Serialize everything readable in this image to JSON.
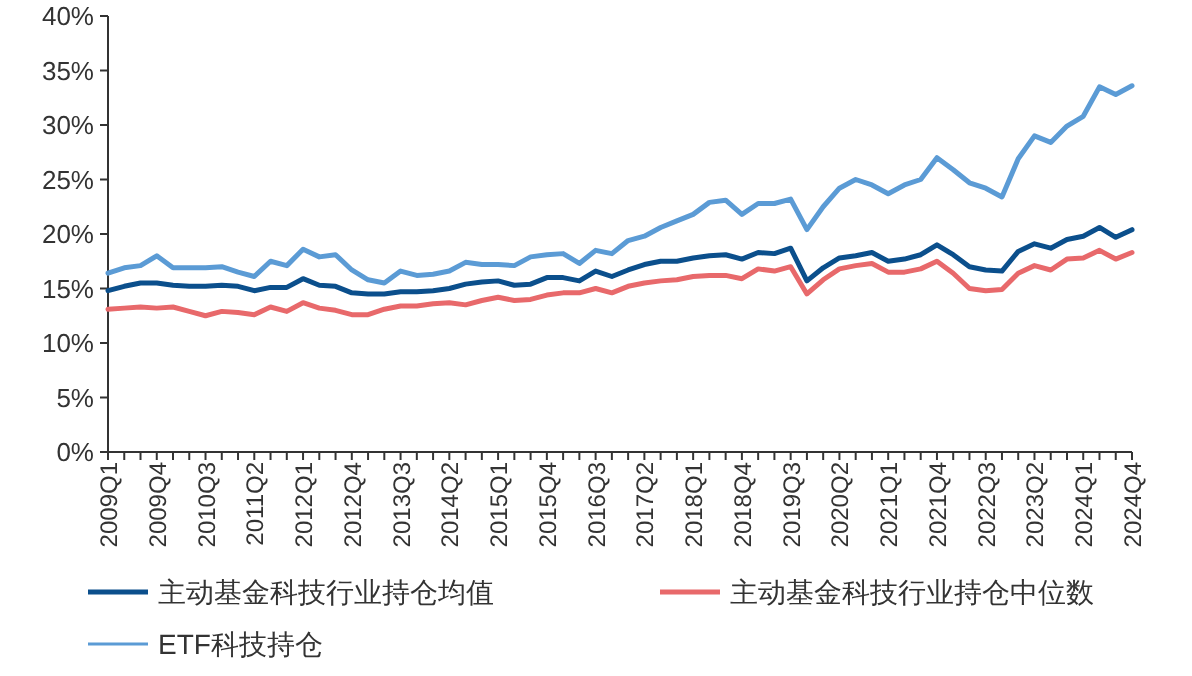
{
  "chart_data": {
    "type": "line",
    "categories": [
      "2009Q1",
      null,
      null,
      "2009Q4",
      null,
      null,
      "2010Q3",
      null,
      null,
      "2011Q2",
      null,
      null,
      "2012Q1",
      null,
      null,
      "2012Q4",
      null,
      null,
      "2013Q3",
      null,
      null,
      "2014Q2",
      null,
      null,
      "2015Q1",
      null,
      null,
      "2015Q4",
      null,
      null,
      "2016Q3",
      null,
      null,
      "2017Q2",
      null,
      null,
      "2018Q1",
      null,
      null,
      "2018Q4",
      null,
      null,
      "2019Q3",
      null,
      null,
      "2020Q2",
      null,
      null,
      "2021Q1",
      null,
      null,
      "2021Q4",
      null,
      null,
      "2022Q3",
      null,
      null,
      "2023Q2",
      null,
      null,
      "2024Q1",
      null,
      null,
      "2024Q4"
    ],
    "series": [
      {
        "name": "主动基金科技行业持仓均值",
        "color": "#0b4f8c",
        "values": [
          14.8,
          15.2,
          15.5,
          15.5,
          15.3,
          15.2,
          15.2,
          15.3,
          15.2,
          14.8,
          15.1,
          15.1,
          15.9,
          15.3,
          15.2,
          14.6,
          14.5,
          14.5,
          14.7,
          14.7,
          14.8,
          15.0,
          15.4,
          15.6,
          15.7,
          15.3,
          15.4,
          16.0,
          16.0,
          15.7,
          16.6,
          16.1,
          16.7,
          17.2,
          17.5,
          17.5,
          17.8,
          18.0,
          18.1,
          17.7,
          18.3,
          18.2,
          18.7,
          15.7,
          16.9,
          17.8,
          18.0,
          18.3,
          17.5,
          17.7,
          18.1,
          19.0,
          18.1,
          17.0,
          16.7,
          16.6,
          18.4,
          19.1,
          18.7,
          19.5,
          19.8,
          20.6,
          19.7,
          20.4
        ]
      },
      {
        "name": "主动基金科技行业持仓中位数",
        "color": "#e8696b",
        "values": [
          13.1,
          13.2,
          13.3,
          13.2,
          13.3,
          12.9,
          12.5,
          12.9,
          12.8,
          12.6,
          13.3,
          12.9,
          13.7,
          13.2,
          13.0,
          12.6,
          12.6,
          13.1,
          13.4,
          13.4,
          13.6,
          13.7,
          13.5,
          13.9,
          14.2,
          13.9,
          14.0,
          14.4,
          14.6,
          14.6,
          15.0,
          14.6,
          15.2,
          15.5,
          15.7,
          15.8,
          16.1,
          16.2,
          16.2,
          15.9,
          16.8,
          16.6,
          17.0,
          14.5,
          15.8,
          16.8,
          17.1,
          17.3,
          16.5,
          16.5,
          16.8,
          17.5,
          16.4,
          15.0,
          14.8,
          14.9,
          16.4,
          17.1,
          16.7,
          17.7,
          17.8,
          18.5,
          17.7,
          18.3
        ]
      },
      {
        "name": "ETF科技持仓",
        "color": "#5b9bd5",
        "values": [
          16.4,
          16.9,
          17.1,
          18.0,
          16.9,
          16.9,
          16.9,
          17.0,
          16.5,
          16.1,
          17.5,
          17.1,
          18.6,
          17.9,
          18.1,
          16.7,
          15.8,
          15.5,
          16.6,
          16.2,
          16.3,
          16.6,
          17.4,
          17.2,
          17.2,
          17.1,
          17.9,
          18.1,
          18.2,
          17.3,
          18.5,
          18.2,
          19.4,
          19.8,
          20.6,
          21.2,
          21.8,
          22.9,
          23.1,
          21.8,
          22.8,
          22.8,
          23.2,
          20.4,
          22.5,
          24.2,
          25.0,
          24.5,
          23.7,
          24.5,
          25.0,
          27.0,
          25.9,
          24.7,
          24.2,
          23.4,
          26.9,
          29.0,
          28.4,
          29.9,
          30.8,
          33.5,
          32.8,
          33.6
        ]
      }
    ],
    "ylim": [
      0,
      40
    ],
    "yticks": [
      {
        "value": 0,
        "label": "0%"
      },
      {
        "value": 5,
        "label": "5%"
      },
      {
        "value": 10,
        "label": "10%"
      },
      {
        "value": 15,
        "label": "15%"
      },
      {
        "value": 20,
        "label": "20%"
      },
      {
        "value": 25,
        "label": "25%"
      },
      {
        "value": 30,
        "label": "30%"
      },
      {
        "value": 35,
        "label": "35%"
      },
      {
        "value": 40,
        "label": "40%"
      }
    ],
    "legend": "bottom",
    "grid": false,
    "marker": "none",
    "line_style": "solid"
  }
}
